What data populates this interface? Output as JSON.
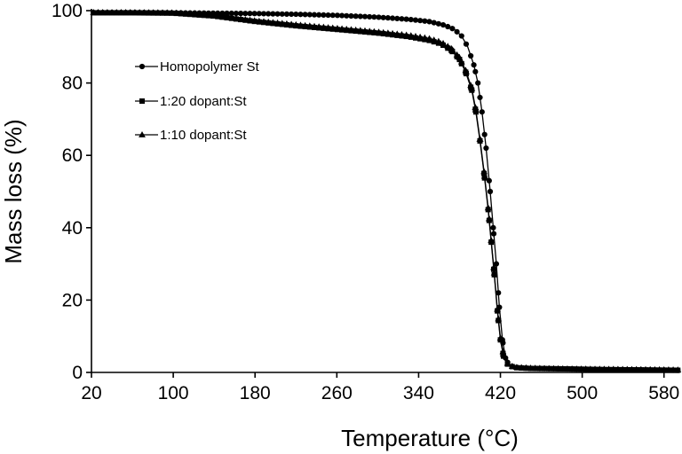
{
  "chart_data": {
    "type": "line",
    "title": "",
    "xlabel": "Temperature (°C)",
    "ylabel": "Mass loss (%)",
    "xlim": [
      20,
      595
    ],
    "ylim": [
      0,
      100
    ],
    "x_ticks": [
      20,
      100,
      180,
      260,
      340,
      420,
      500,
      580
    ],
    "y_ticks": [
      0,
      20,
      40,
      60,
      80,
      100
    ],
    "grid": false,
    "legend": {
      "position": "upper-left",
      "items": [
        {
          "label": "Homopolymer St",
          "marker": "circle"
        },
        {
          "label": "1:20 dopant:St",
          "marker": "square"
        },
        {
          "label": "1:10 dopant:St",
          "marker": "triangle"
        }
      ]
    },
    "series": [
      {
        "name": "Homopolymer St",
        "marker": "circle",
        "x": [
          22,
          60,
          100,
          140,
          180,
          220,
          260,
          300,
          330,
          350,
          365,
          375,
          382,
          388,
          394,
          398,
          402,
          406,
          410,
          413,
          416,
          419,
          422,
          425,
          428,
          432,
          438,
          450,
          480,
          520,
          560,
          595
        ],
        "y": [
          99.5,
          99.5,
          99.4,
          99.3,
          99.2,
          99.0,
          98.7,
          98.2,
          97.6,
          97.0,
          96.0,
          94.8,
          93.0,
          90.0,
          85.0,
          80.0,
          72.0,
          62.0,
          50.0,
          40.0,
          30.0,
          18.0,
          9.0,
          4.0,
          2.2,
          1.6,
          1.3,
          1.1,
          1.0,
          0.8,
          0.7,
          0.6
        ]
      },
      {
        "name": "1:20 dopant:St",
        "marker": "square",
        "x": [
          22,
          60,
          100,
          140,
          180,
          220,
          260,
          300,
          330,
          350,
          362,
          372,
          380,
          386,
          392,
          396,
          400,
          404,
          408,
          411,
          414,
          417,
          420,
          423,
          426,
          430,
          436,
          450,
          480,
          520,
          560,
          595
        ],
        "y": [
          99.4,
          99.4,
          99.3,
          98.5,
          97.0,
          95.8,
          94.8,
          93.8,
          92.8,
          91.8,
          90.8,
          89.0,
          86.5,
          83.0,
          78.0,
          72.0,
          64.0,
          55.0,
          45.0,
          36.0,
          27.0,
          17.0,
          9.0,
          4.5,
          2.5,
          1.7,
          1.3,
          1.1,
          1.0,
          0.8,
          0.7,
          0.6
        ]
      },
      {
        "name": "1:10 dopant:St",
        "marker": "triangle",
        "x": [
          22,
          60,
          100,
          140,
          180,
          220,
          260,
          300,
          330,
          350,
          362,
          372,
          380,
          386,
          392,
          396,
          400,
          404,
          408,
          411,
          414,
          417,
          420,
          423,
          426,
          430,
          436,
          450,
          480,
          520,
          560,
          595
        ],
        "y": [
          99.5,
          99.5,
          99.4,
          98.6,
          97.2,
          96.1,
          95.1,
          94.1,
          93.2,
          92.3,
          91.3,
          89.5,
          87.0,
          83.5,
          78.5,
          72.5,
          64.5,
          55.5,
          45.5,
          36.5,
          27.5,
          17.5,
          9.5,
          5.0,
          2.8,
          1.8,
          1.4,
          1.2,
          1.0,
          0.9,
          0.8,
          0.7
        ]
      }
    ]
  }
}
